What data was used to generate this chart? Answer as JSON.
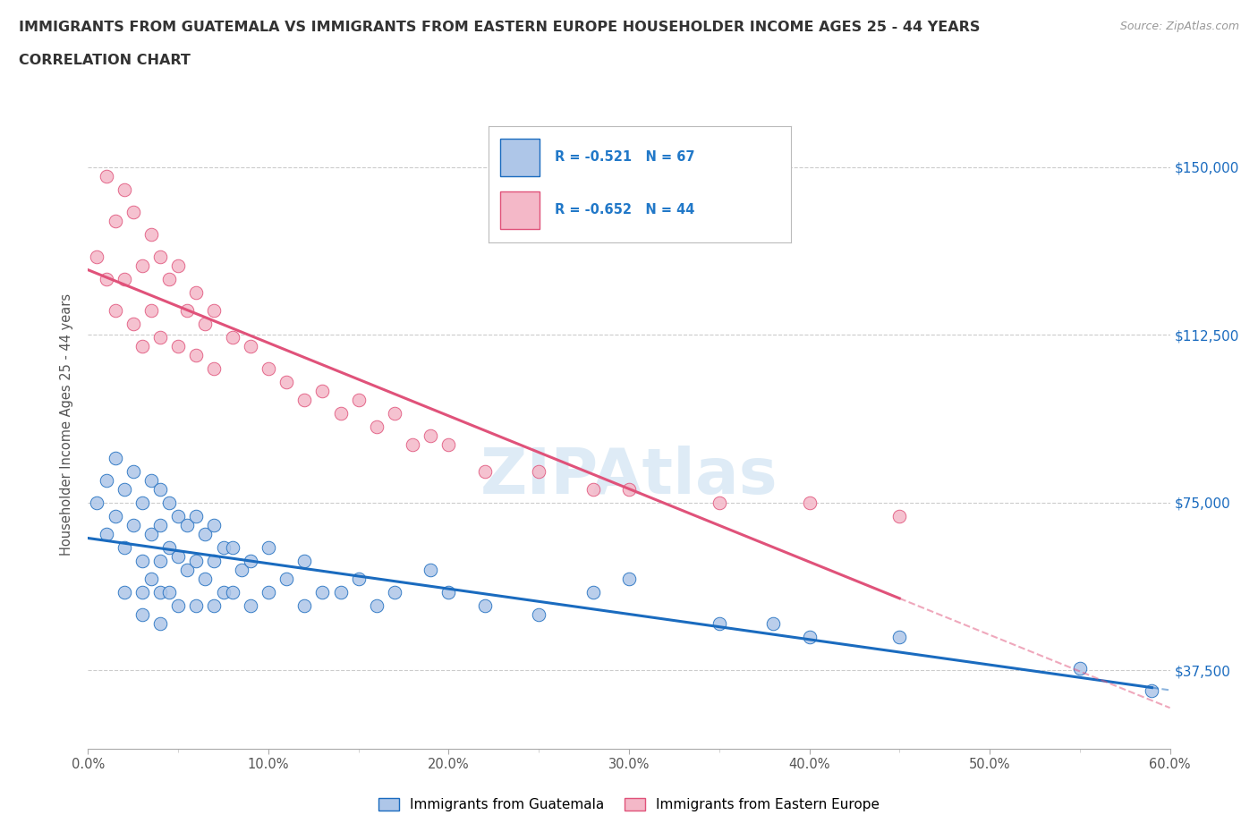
{
  "title_line1": "IMMIGRANTS FROM GUATEMALA VS IMMIGRANTS FROM EASTERN EUROPE HOUSEHOLDER INCOME AGES 25 - 44 YEARS",
  "title_line2": "CORRELATION CHART",
  "source_text": "Source: ZipAtlas.com",
  "ylabel": "Householder Income Ages 25 - 44 years",
  "xlim": [
    0.0,
    0.6
  ],
  "ylim": [
    20000,
    165000
  ],
  "xtick_labels": [
    "0.0%",
    "",
    "10.0%",
    "",
    "20.0%",
    "",
    "30.0%",
    "",
    "40.0%",
    "",
    "50.0%",
    "",
    "60.0%"
  ],
  "xtick_values": [
    0.0,
    0.05,
    0.1,
    0.15,
    0.2,
    0.25,
    0.3,
    0.35,
    0.4,
    0.45,
    0.5,
    0.55,
    0.6
  ],
  "ytick_values": [
    37500,
    75000,
    112500,
    150000
  ],
  "ytick_labels": [
    "$37,500",
    "$75,000",
    "$112,500",
    "$150,000"
  ],
  "R_guatemala": -0.521,
  "N_guatemala": 67,
  "R_eastern_europe": -0.652,
  "N_eastern_europe": 44,
  "color_guatemala": "#aec6e8",
  "color_eastern_europe": "#f4b8c8",
  "line_color_guatemala": "#1a6bbf",
  "line_color_eastern_europe": "#e0527a",
  "legend_R_color": "#2178c8",
  "watermark_color": "#c8dff0",
  "guatemala_x": [
    0.005,
    0.01,
    0.01,
    0.015,
    0.015,
    0.02,
    0.02,
    0.02,
    0.025,
    0.025,
    0.03,
    0.03,
    0.03,
    0.03,
    0.035,
    0.035,
    0.035,
    0.04,
    0.04,
    0.04,
    0.04,
    0.04,
    0.045,
    0.045,
    0.045,
    0.05,
    0.05,
    0.05,
    0.055,
    0.055,
    0.06,
    0.06,
    0.06,
    0.065,
    0.065,
    0.07,
    0.07,
    0.07,
    0.075,
    0.075,
    0.08,
    0.08,
    0.085,
    0.09,
    0.09,
    0.1,
    0.1,
    0.11,
    0.12,
    0.12,
    0.13,
    0.14,
    0.15,
    0.16,
    0.17,
    0.19,
    0.2,
    0.22,
    0.25,
    0.28,
    0.3,
    0.35,
    0.38,
    0.4,
    0.45,
    0.55,
    0.59
  ],
  "guatemala_y": [
    75000,
    80000,
    68000,
    85000,
    72000,
    78000,
    65000,
    55000,
    82000,
    70000,
    75000,
    62000,
    55000,
    50000,
    80000,
    68000,
    58000,
    78000,
    70000,
    62000,
    55000,
    48000,
    75000,
    65000,
    55000,
    72000,
    63000,
    52000,
    70000,
    60000,
    72000,
    62000,
    52000,
    68000,
    58000,
    70000,
    62000,
    52000,
    65000,
    55000,
    65000,
    55000,
    60000,
    62000,
    52000,
    65000,
    55000,
    58000,
    62000,
    52000,
    55000,
    55000,
    58000,
    52000,
    55000,
    60000,
    55000,
    52000,
    50000,
    55000,
    58000,
    48000,
    48000,
    45000,
    45000,
    38000,
    33000
  ],
  "eastern_europe_x": [
    0.005,
    0.01,
    0.01,
    0.015,
    0.015,
    0.02,
    0.02,
    0.025,
    0.025,
    0.03,
    0.03,
    0.035,
    0.035,
    0.04,
    0.04,
    0.045,
    0.05,
    0.05,
    0.055,
    0.06,
    0.06,
    0.065,
    0.07,
    0.07,
    0.08,
    0.09,
    0.1,
    0.11,
    0.12,
    0.13,
    0.14,
    0.15,
    0.16,
    0.17,
    0.18,
    0.19,
    0.2,
    0.22,
    0.25,
    0.28,
    0.3,
    0.35,
    0.4,
    0.45
  ],
  "eastern_europe_y": [
    130000,
    148000,
    125000,
    138000,
    118000,
    145000,
    125000,
    140000,
    115000,
    128000,
    110000,
    135000,
    118000,
    130000,
    112000,
    125000,
    128000,
    110000,
    118000,
    122000,
    108000,
    115000,
    118000,
    105000,
    112000,
    110000,
    105000,
    102000,
    98000,
    100000,
    95000,
    98000,
    92000,
    95000,
    88000,
    90000,
    88000,
    82000,
    82000,
    78000,
    78000,
    75000,
    75000,
    72000
  ]
}
